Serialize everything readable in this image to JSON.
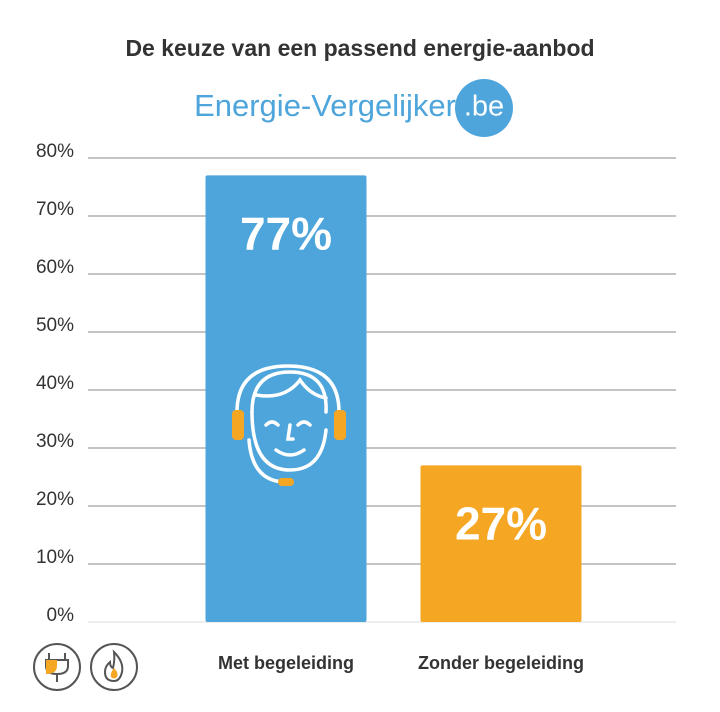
{
  "logo": {
    "text": "Energie-Vergelijker",
    "suffix": ".be"
  },
  "chart_data": {
    "type": "bar",
    "title": "De keuze van een passend energie-aanbod",
    "categories": [
      "Met begeleiding",
      "Zonder begeleiding"
    ],
    "values": [
      77,
      27
    ],
    "value_labels": [
      "77%",
      "27%"
    ],
    "colors": [
      "#4ea5dc",
      "#f5a623"
    ],
    "ylim": [
      0,
      80
    ],
    "yticks": [
      {
        "value": 0,
        "label": "0%"
      },
      {
        "value": 10,
        "label": "10%"
      },
      {
        "value": 20,
        "label": "20%"
      },
      {
        "value": 30,
        "label": "30%"
      },
      {
        "value": 40,
        "label": "40%"
      },
      {
        "value": 50,
        "label": "50%"
      },
      {
        "value": 60,
        "label": "60%"
      },
      {
        "value": 70,
        "label": "70%"
      },
      {
        "value": 80,
        "label": "80%"
      }
    ],
    "grid": true
  }
}
